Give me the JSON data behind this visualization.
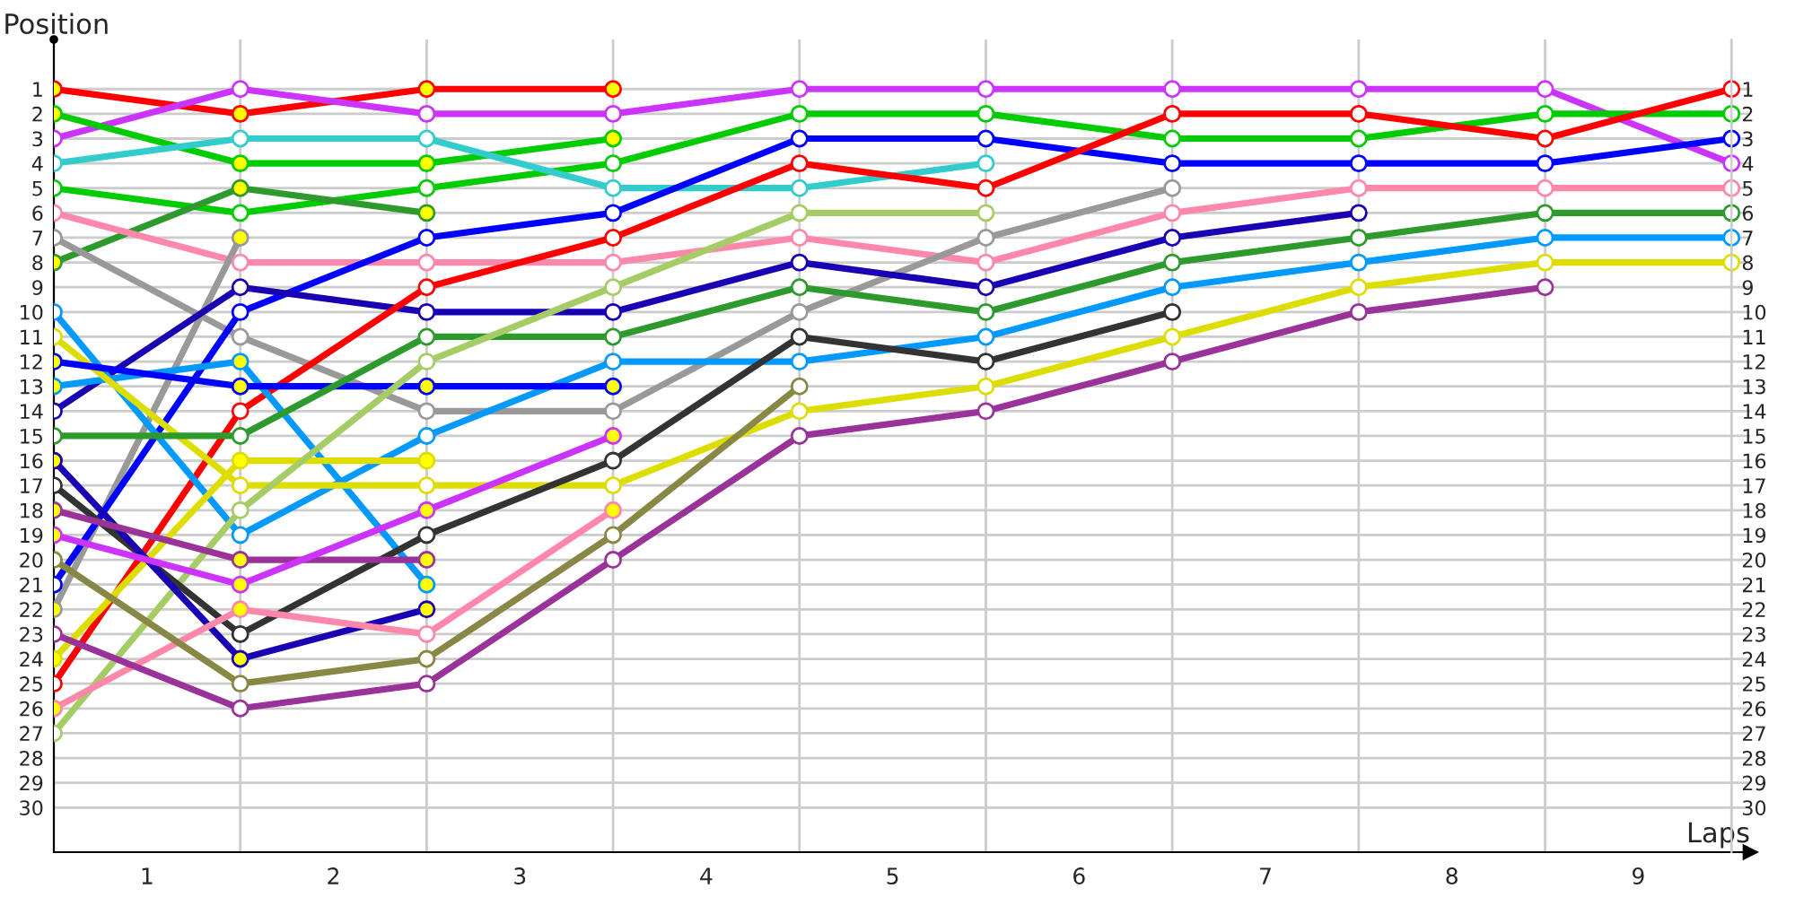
{
  "chart_data": {
    "type": "line",
    "xlabel": "Laps",
    "ylabel": "Position",
    "x": [
      0,
      1,
      2,
      3,
      4,
      5,
      6,
      7,
      8,
      9
    ],
    "xlim": [
      0,
      9.1
    ],
    "ylim": [
      31.8,
      -1
    ],
    "xticks": [
      {
        "value": 0.5,
        "label": "1"
      },
      {
        "value": 1.5,
        "label": "2"
      },
      {
        "value": 2.5,
        "label": "3"
      },
      {
        "value": 3.5,
        "label": "4"
      },
      {
        "value": 4.5,
        "label": "5"
      },
      {
        "value": 5.5,
        "label": "6"
      },
      {
        "value": 6.5,
        "label": "7"
      },
      {
        "value": 7.5,
        "label": "8"
      },
      {
        "value": 8.5,
        "label": "9"
      },
      {
        "value": 1,
        "label": null
      },
      {
        "value": 2,
        "label": null
      },
      {
        "value": 3,
        "label": null
      },
      {
        "value": 4,
        "label": null
      },
      {
        "value": 5,
        "label": null
      },
      {
        "value": 6,
        "label": null
      },
      {
        "value": 7,
        "label": null
      },
      {
        "value": 8,
        "label": null
      },
      {
        "value": 9,
        "label": null
      }
    ],
    "yticks": [
      1,
      2,
      3,
      4,
      5,
      6,
      7,
      8,
      9,
      10,
      11,
      12,
      13,
      14,
      15,
      16,
      17,
      18,
      19,
      20,
      21,
      22,
      23,
      24,
      25,
      26,
      27,
      28,
      29,
      30
    ],
    "y2lim": [
      31.8,
      -1
    ],
    "y2ticks": [
      1,
      2,
      3,
      4,
      5,
      6,
      7,
      8,
      9,
      10,
      11,
      12,
      13,
      14,
      15,
      16,
      17,
      18,
      19,
      20,
      21,
      22,
      23,
      24,
      25,
      26,
      27,
      28,
      29,
      30
    ],
    "grid": true,
    "marker": "circle",
    "line_style": "solid",
    "series": [
      {
        "color": "#ff0000",
        "values": [
          1,
          2,
          1,
          1,
          null,
          null,
          null,
          null,
          null,
          null
        ],
        "colors": [
          "#ffff00",
          "#ffff00",
          "#ffff00",
          "#ffff00",
          null,
          null,
          null,
          null,
          null,
          null
        ]
      },
      {
        "color": "#cc33ff",
        "values": [
          3,
          1,
          2,
          2,
          1,
          1,
          1,
          1,
          1,
          4
        ],
        "colors": [
          "#ffffff",
          "#ffffff",
          "#ffffff",
          "#ffffff",
          "#ffffff",
          "#ffffff",
          "#ffffff",
          "#ffffff",
          "#ffffff",
          "#ffffff"
        ]
      },
      {
        "color": "#00cc00",
        "values": [
          2,
          4,
          4,
          3,
          null,
          null,
          null,
          null,
          null,
          null
        ],
        "colors": [
          "#ffff00",
          "#ffff00",
          "#ffff00",
          "#ffff00",
          null,
          null,
          null,
          null,
          null,
          null
        ]
      },
      {
        "color": "#00cc00",
        "values": [
          5,
          6,
          5,
          4,
          2,
          2,
          3,
          3,
          2,
          2
        ],
        "colors": [
          "#ffffff",
          "#ffffff",
          "#ffffff",
          "#ffffff",
          "#ffffff",
          "#ffffff",
          "#ffffff",
          "#ffffff",
          "#ffffff",
          "#ffffff"
        ]
      },
      {
        "color": "#33cccc",
        "values": [
          4,
          3,
          3,
          5,
          5,
          4,
          null,
          null,
          null,
          null
        ],
        "colors": [
          "#ffffff",
          "#ffffff",
          "#ffffff",
          "#ffffff",
          "#ffffff",
          "#ffffff",
          null,
          null,
          null,
          null
        ]
      },
      {
        "color": "#2e9a2e",
        "values": [
          8,
          5,
          6,
          null,
          null,
          null,
          null,
          null,
          null,
          null
        ],
        "colors": [
          "#ffff00",
          "#ffff00",
          "#ffff00",
          null,
          null,
          null,
          null,
          null,
          null,
          null
        ]
      },
      {
        "color": "#ff88aa",
        "values": [
          6,
          8,
          8,
          8,
          7,
          8,
          6,
          5,
          5,
          5
        ],
        "colors": [
          "#ffffff",
          "#ffffff",
          "#ffffff",
          "#ffffff",
          "#ffffff",
          "#ffffff",
          "#ffffff",
          "#ffffff",
          "#ffffff",
          "#ffffff"
        ]
      },
      {
        "color": "#999999",
        "values": [
          7,
          11,
          14,
          14,
          10,
          7,
          5,
          null,
          null,
          null
        ],
        "colors": [
          "#ffffff",
          "#ffffff",
          "#ffffff",
          "#ffffff",
          "#ffffff",
          "#ffffff",
          "#ffffff",
          null,
          null,
          null
        ]
      },
      {
        "color": "#999999",
        "values": [
          22,
          7,
          null,
          null,
          null,
          null,
          null,
          null,
          null,
          null
        ],
        "colors": [
          "#ffff00",
          "#ffff00",
          null,
          null,
          null,
          null,
          null,
          null,
          null,
          null
        ]
      },
      {
        "color": "#0000ff",
        "values": [
          21,
          10,
          7,
          6,
          3,
          3,
          4,
          4,
          4,
          3
        ],
        "colors": [
          "#ffffff",
          "#ffffff",
          "#ffffff",
          "#ffffff",
          "#ffffff",
          "#ffffff",
          "#ffffff",
          "#ffffff",
          "#ffffff",
          "#ffffff"
        ]
      },
      {
        "color": "#1a00b3",
        "values": [
          14,
          9,
          10,
          10,
          8,
          9,
          7,
          6,
          null,
          null
        ],
        "colors": [
          "#ffffff",
          "#ffffff",
          "#ffffff",
          "#ffffff",
          "#ffffff",
          "#ffffff",
          "#ffffff",
          "#ffffff",
          null,
          null
        ]
      },
      {
        "color": "#ff0000",
        "values": [
          25,
          14,
          9,
          7,
          4,
          5,
          2,
          2,
          3,
          1
        ],
        "colors": [
          "#ffffff",
          "#ffffff",
          "#ffffff",
          "#ffffff",
          "#ffffff",
          "#ffffff",
          "#ffffff",
          "#ffffff",
          "#ffffff",
          "#ffffff"
        ]
      },
      {
        "color": "#0099ff",
        "values": [
          13,
          12,
          21,
          null,
          null,
          null,
          null,
          null,
          null,
          null
        ],
        "colors": [
          "#ffff00",
          "#ffff00",
          "#ffff00",
          null,
          null,
          null,
          null,
          null,
          null,
          null
        ]
      },
      {
        "color": "#0099ff",
        "values": [
          10,
          19,
          15,
          12,
          12,
          11,
          9,
          8,
          7,
          7
        ],
        "colors": [
          "#ffffff",
          "#ffffff",
          "#ffffff",
          "#ffffff",
          "#ffffff",
          "#ffffff",
          "#ffffff",
          "#ffffff",
          "#ffffff",
          "#ffffff"
        ]
      },
      {
        "color": "#dddd00",
        "values": [
          11,
          17,
          17,
          17,
          14,
          13,
          11,
          9,
          8,
          8
        ],
        "colors": [
          "#ffffff",
          "#ffffff",
          "#ffffff",
          "#ffffff",
          "#ffffff",
          "#ffffff",
          "#ffffff",
          "#ffffff",
          "#ffffff",
          "#ffffff"
        ]
      },
      {
        "color": "#dddd00",
        "values": [
          24,
          16,
          16,
          null,
          null,
          null,
          null,
          null,
          null,
          null
        ],
        "colors": [
          "#ffff00",
          "#ffff00",
          "#ffff00",
          null,
          null,
          null,
          null,
          null,
          null,
          null
        ]
      },
      {
        "color": "#0000ff",
        "values": [
          12,
          13,
          13,
          13,
          null,
          null,
          null,
          null,
          null,
          null
        ],
        "colors": [
          "#ffff00",
          "#ffff00",
          "#ffff00",
          "#ffff00",
          null,
          null,
          null,
          null,
          null,
          null
        ]
      },
      {
        "color": "#2e9a2e",
        "values": [
          15,
          15,
          11,
          11,
          9,
          10,
          8,
          7,
          6,
          6
        ],
        "colors": [
          "#ffffff",
          "#ffffff",
          "#ffffff",
          "#ffffff",
          "#ffffff",
          "#ffffff",
          "#ffffff",
          "#ffffff",
          "#ffffff",
          "#ffffff"
        ]
      },
      {
        "color": "#a6cc66",
        "values": [
          27,
          18,
          12,
          9,
          6,
          6,
          null,
          null,
          null,
          null
        ],
        "colors": [
          "#ffffff",
          "#ffffff",
          "#ffffff",
          "#ffffff",
          "#ffffff",
          "#ffffff",
          null,
          null,
          null,
          null
        ]
      },
      {
        "color": "#333333",
        "values": [
          17,
          23,
          19,
          16,
          11,
          12,
          10,
          null,
          null,
          null
        ],
        "colors": [
          "#ffffff",
          "#ffffff",
          "#ffffff",
          "#ffffff",
          "#ffffff",
          "#ffffff",
          "#ffffff",
          null,
          null,
          null
        ]
      },
      {
        "color": "#1a00b3",
        "values": [
          16,
          24,
          22,
          null,
          null,
          null,
          null,
          null,
          null,
          null
        ],
        "colors": [
          "#ffff00",
          "#ffff00",
          "#ffff00",
          null,
          null,
          null,
          null,
          null,
          null,
          null
        ]
      },
      {
        "color": "#993399",
        "values": [
          18,
          20,
          20,
          null,
          null,
          null,
          null,
          null,
          null,
          null
        ],
        "colors": [
          "#ffff00",
          "#ffff00",
          "#ffff00",
          null,
          null,
          null,
          null,
          null,
          null,
          null
        ]
      },
      {
        "color": "#cc33ff",
        "values": [
          19,
          21,
          18,
          15,
          null,
          null,
          null,
          null,
          null,
          null
        ],
        "colors": [
          "#ffff00",
          "#ffff00",
          "#ffff00",
          "#ffff00",
          null,
          null,
          null,
          null,
          null,
          null
        ]
      },
      {
        "color": "#ff88aa",
        "values": [
          26,
          22,
          23,
          18,
          null,
          null,
          null,
          null,
          null,
          null
        ],
        "colors": [
          "#ffff00",
          "#ffff00",
          "#ffffff",
          "#ffff00",
          null,
          null,
          null,
          null,
          null,
          null
        ]
      },
      {
        "color": "#888844",
        "values": [
          20,
          25,
          24,
          19,
          13,
          null,
          null,
          null,
          null,
          null
        ],
        "colors": [
          "#ffffff",
          "#ffffff",
          "#ffffff",
          "#ffffff",
          "#ffffff",
          null,
          null,
          null,
          null,
          null
        ]
      },
      {
        "color": "#993399",
        "values": [
          23,
          26,
          25,
          20,
          15,
          14,
          12,
          10,
          9,
          null
        ],
        "colors": [
          "#ffffff",
          "#ffffff",
          "#ffffff",
          "#ffffff",
          "#ffffff",
          "#ffffff",
          "#ffffff",
          "#ffffff",
          "#ffffff",
          null
        ]
      }
    ]
  }
}
